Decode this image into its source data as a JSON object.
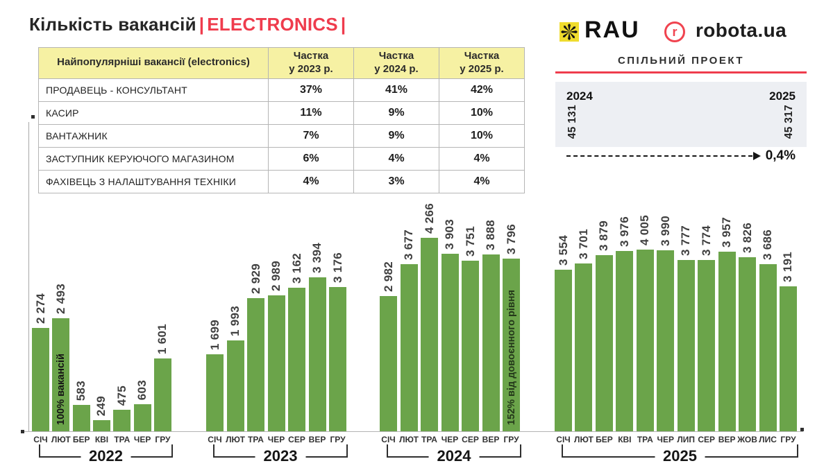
{
  "title": {
    "main": "Кількість вакансій",
    "pipe": "|",
    "highlight": "ELECTRONICS"
  },
  "logos": {
    "rau_text": "RAU",
    "rau_star_icon": "eight-petal-star",
    "robota_r": "r",
    "robota_text": "robota.ua",
    "project_label": "СПІЛЬНИЙ ПРОЕКТ"
  },
  "summary": {
    "year_left": "2024",
    "value_left": "45 131",
    "year_right": "2025",
    "value_right": "45 317",
    "delta": "0,4%"
  },
  "table": {
    "columns": [
      "Найпопулярніші вакансії (electronics)",
      "Частка\nу 2023 р.",
      "Частка\nу 2024 р.",
      "Частка\nу 2025 р."
    ],
    "rows": [
      {
        "name": "ПРОДАВЕЦЬ - КОНСУЛЬТАНТ",
        "shares": [
          "37%",
          "41%",
          "42%"
        ]
      },
      {
        "name": "КАСИР",
        "shares": [
          "11%",
          "9%",
          "10%"
        ]
      },
      {
        "name": "ВАНТАЖНИК",
        "shares": [
          "7%",
          "9%",
          "10%"
        ]
      },
      {
        "name": "ЗАСТУПНИК КЕРУЮЧОГО МАГАЗИНОМ",
        "shares": [
          "6%",
          "4%",
          "4%"
        ]
      },
      {
        "name": "ФАХІВЕЦЬ З НАЛАШТУВАННЯ ТЕХНІКИ",
        "shares": [
          "4%",
          "3%",
          "4%"
        ]
      }
    ]
  },
  "chart_data": {
    "type": "bar",
    "title": "Кількість вакансій ELECTRONICS по місяцях",
    "ylabel": "Кількість вакансій",
    "bar_color": "#6ba44a",
    "label_color": "#404040",
    "groups": [
      {
        "year": "2022",
        "months": [
          "СІЧ",
          "ЛЮТ",
          "БЕР",
          "КВІ",
          "ТРА",
          "ЧЕР",
          "ГРУ"
        ],
        "values": [
          2274,
          2493,
          583,
          249,
          475,
          603,
          1601
        ],
        "annotation": {
          "month": "ЛЮТ",
          "text": "100% вакансій",
          "color": "#141414"
        }
      },
      {
        "year": "2023",
        "months": [
          "СІЧ",
          "ЛЮТ",
          "ТРА",
          "ЧЕР",
          "СЕР",
          "ВЕР",
          "ГРУ"
        ],
        "values": [
          1699,
          1993,
          2929,
          2989,
          3162,
          3394,
          3176
        ]
      },
      {
        "year": "2024",
        "months": [
          "СІЧ",
          "ЛЮТ",
          "ТРА",
          "ЧЕР",
          "СЕР",
          "ВЕР",
          "ГРУ"
        ],
        "values": [
          2982,
          3677,
          4266,
          3903,
          3751,
          3888,
          3796
        ],
        "annotation": {
          "month": "ГРУ",
          "text": "152% від довоєнного рівня",
          "color": "#24391a"
        }
      },
      {
        "year": "2025",
        "months": [
          "СІЧ",
          "ЛЮТ",
          "БЕР",
          "КВІ",
          "ТРА",
          "ЧЕР",
          "ЛИП",
          "СЕР",
          "ВЕР",
          "ЖОВ",
          "ЛИС",
          "ГРУ"
        ],
        "values": [
          3554,
          3701,
          3879,
          3976,
          4005,
          3990,
          3777,
          3774,
          3957,
          3826,
          3686,
          3191
        ]
      }
    ]
  }
}
